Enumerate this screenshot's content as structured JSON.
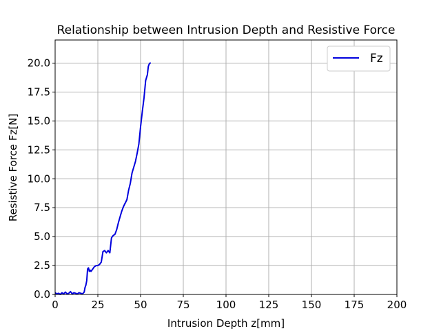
{
  "chart_data": {
    "type": "line",
    "title": "Relationship between Intrusion Depth and Resistive Force",
    "xlabel": "Intrusion Depth z[mm]",
    "ylabel": "Resistive Force Fz[N]",
    "xlim": [
      0,
      200
    ],
    "ylim": [
      0,
      22
    ],
    "xticks": [
      0,
      25,
      50,
      75,
      100,
      125,
      150,
      175,
      200
    ],
    "yticks": [
      0.0,
      2.5,
      5.0,
      7.5,
      10.0,
      12.5,
      15.0,
      17.5,
      20.0
    ],
    "xtick_labels": [
      "0",
      "25",
      "50",
      "75",
      "100",
      "125",
      "150",
      "175",
      "200"
    ],
    "ytick_labels": [
      "0.0",
      "2.5",
      "5.0",
      "7.5",
      "10.0",
      "12.5",
      "15.0",
      "17.5",
      "20.0"
    ],
    "grid": true,
    "legend_position": "upper right",
    "series": [
      {
        "name": "Fz",
        "color": "#0000dd",
        "x": [
          0,
          1,
          2,
          3,
          4,
          5,
          6,
          7,
          8,
          9,
          10,
          11,
          12,
          13,
          14,
          15,
          16,
          17,
          17.5,
          18,
          18.5,
          19,
          19.5,
          20,
          20.5,
          21,
          22,
          23,
          24,
          25,
          26,
          27,
          28,
          29,
          30,
          31,
          32,
          33,
          34,
          35,
          36,
          37,
          38,
          39,
          40,
          41,
          42,
          43,
          44,
          45,
          46,
          47,
          48,
          49,
          50,
          51,
          52,
          53,
          54,
          54.5,
          55,
          55.5,
          56
        ],
        "y": [
          0.15,
          0.05,
          0.1,
          0.0,
          0.15,
          0.05,
          0.2,
          0.05,
          0.1,
          0.25,
          0.05,
          0.15,
          0.1,
          0.05,
          0.15,
          0.1,
          0.05,
          0.2,
          0.6,
          0.8,
          1.2,
          2.2,
          2.3,
          2.0,
          2.1,
          2.0,
          2.2,
          2.4,
          2.5,
          2.5,
          2.6,
          2.8,
          3.7,
          3.8,
          3.6,
          3.8,
          3.6,
          4.9,
          5.1,
          5.2,
          5.6,
          6.2,
          6.7,
          7.2,
          7.6,
          7.9,
          8.2,
          9.0,
          9.6,
          10.5,
          11.0,
          11.5,
          12.2,
          13.0,
          14.5,
          15.8,
          17.0,
          18.5,
          19.0,
          19.7,
          19.9,
          20.0,
          20.0
        ]
      }
    ]
  }
}
